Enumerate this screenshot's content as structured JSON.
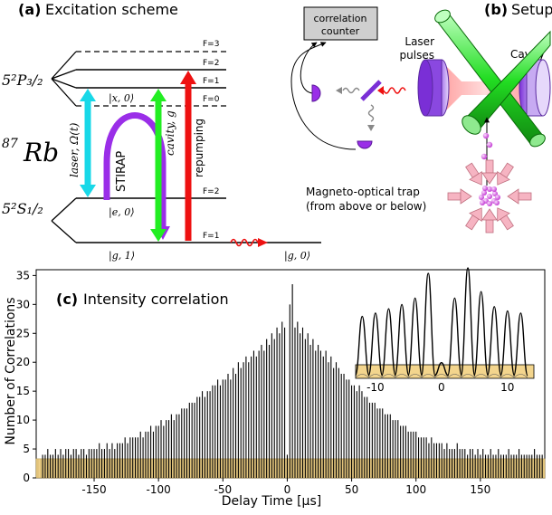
{
  "panel_a": {
    "title_letter": "(a)",
    "title_text": "Excitation scheme",
    "species": "87",
    "species_symbol": "Rb",
    "state_p": "5²P₃/₂",
    "state_s": "5²S₁/₂",
    "levels_p": [
      "F=3",
      "F=2",
      "F=1",
      "F=0"
    ],
    "levels_s": [
      "F=2",
      "F=1"
    ],
    "ket_x0": "|x, 0⟩",
    "ket_e0": "|e, 0⟩",
    "ket_g1": "|g, 1⟩",
    "ket_g0": "|g, 0⟩",
    "laser_label": "laser, Ω(t)",
    "stirap_label": "STIRAP",
    "cavity_label": "cavity, g",
    "repump_label": "repumping",
    "colors": {
      "laser": "#18d8e8",
      "stirap": "#9a2ee8",
      "cavity": "#22ee22",
      "repump": "#ee1111",
      "photon": "#ee1111"
    }
  },
  "panel_b": {
    "title_letter": "(b)",
    "title_text": "Setup",
    "counter_label": [
      "correlation",
      "counter"
    ],
    "laser_label": [
      "Laser",
      "pulses"
    ],
    "cavity_label": "Cavity",
    "mot_label": [
      "Magneto-optical trap",
      "(from above or below)"
    ],
    "icons": [
      "detector-icon",
      "beam-splitter-icon",
      "photon-wave-icon",
      "mirror-icon",
      "atom-cloud-icon"
    ]
  },
  "panel_c": {
    "title_letter": "(c)",
    "title_text": "Intensity correlation"
  },
  "chart_data": {
    "type": "bar",
    "title": "Intensity correlation",
    "xlabel": "Delay Time [μs]",
    "ylabel": "Number of Correlations",
    "xlim": [
      -195,
      200
    ],
    "ylim": [
      0,
      36
    ],
    "xticks": [
      -150,
      -100,
      -50,
      0,
      50,
      100,
      150
    ],
    "xtick_labels": [
      "-150",
      "-100",
      "-50",
      "0",
      "50",
      "100",
      "150"
    ],
    "yticks": [
      0,
      5,
      10,
      15,
      20,
      25,
      30,
      35
    ],
    "ytick_labels": [
      "0",
      "5",
      "10",
      "15",
      "20",
      "25",
      "30",
      "35"
    ],
    "peak_period": 2,
    "peaks": [
      [
        -190,
        4
      ],
      [
        -188,
        4
      ],
      [
        -186,
        5
      ],
      [
        -184,
        4
      ],
      [
        -182,
        4
      ],
      [
        -180,
        5
      ],
      [
        -178,
        4
      ],
      [
        -176,
        5
      ],
      [
        -174,
        4
      ],
      [
        -172,
        5
      ],
      [
        -170,
        5
      ],
      [
        -168,
        4
      ],
      [
        -166,
        5
      ],
      [
        -164,
        5
      ],
      [
        -162,
        4
      ],
      [
        -160,
        5
      ],
      [
        -158,
        5
      ],
      [
        -156,
        4
      ],
      [
        -154,
        5
      ],
      [
        -152,
        5
      ],
      [
        -150,
        5
      ],
      [
        -148,
        5
      ],
      [
        -146,
        6
      ],
      [
        -144,
        5
      ],
      [
        -142,
        5
      ],
      [
        -140,
        6
      ],
      [
        -138,
        5
      ],
      [
        -136,
        6
      ],
      [
        -134,
        5
      ],
      [
        -132,
        6
      ],
      [
        -130,
        6
      ],
      [
        -128,
        6
      ],
      [
        -126,
        7
      ],
      [
        -124,
        6
      ],
      [
        -122,
        7
      ],
      [
        -120,
        7
      ],
      [
        -118,
        7
      ],
      [
        -116,
        7
      ],
      [
        -114,
        8
      ],
      [
        -112,
        7
      ],
      [
        -110,
        8
      ],
      [
        -108,
        8
      ],
      [
        -106,
        9
      ],
      [
        -104,
        8
      ],
      [
        -102,
        9
      ],
      [
        -100,
        9
      ],
      [
        -98,
        10
      ],
      [
        -96,
        9
      ],
      [
        -94,
        10
      ],
      [
        -92,
        10
      ],
      [
        -90,
        11
      ],
      [
        -88,
        10
      ],
      [
        -86,
        11
      ],
      [
        -84,
        11
      ],
      [
        -82,
        12
      ],
      [
        -80,
        12
      ],
      [
        -78,
        12
      ],
      [
        -76,
        13
      ],
      [
        -74,
        13
      ],
      [
        -72,
        13
      ],
      [
        -70,
        14
      ],
      [
        -68,
        14
      ],
      [
        -66,
        15
      ],
      [
        -64,
        14
      ],
      [
        -62,
        15
      ],
      [
        -60,
        15
      ],
      [
        -58,
        16
      ],
      [
        -56,
        16
      ],
      [
        -54,
        17
      ],
      [
        -52,
        16
      ],
      [
        -50,
        17
      ],
      [
        -48,
        17
      ],
      [
        -46,
        18
      ],
      [
        -44,
        17
      ],
      [
        -42,
        19
      ],
      [
        -40,
        18
      ],
      [
        -38,
        20
      ],
      [
        -36,
        19
      ],
      [
        -34,
        20
      ],
      [
        -32,
        21
      ],
      [
        -30,
        20
      ],
      [
        -28,
        21
      ],
      [
        -26,
        22
      ],
      [
        -24,
        21
      ],
      [
        -22,
        22
      ],
      [
        -20,
        23
      ],
      [
        -18,
        22
      ],
      [
        -16,
        24
      ],
      [
        -14,
        23
      ],
      [
        -12,
        25
      ],
      [
        -10,
        24
      ],
      [
        -8,
        26
      ],
      [
        -6,
        25
      ],
      [
        -4,
        27
      ],
      [
        -2,
        26
      ],
      [
        0,
        4
      ],
      [
        2,
        30
      ],
      [
        4,
        33.5
      ],
      [
        6,
        26
      ],
      [
        8,
        27
      ],
      [
        10,
        25
      ],
      [
        12,
        26
      ],
      [
        14,
        24
      ],
      [
        16,
        25
      ],
      [
        18,
        23
      ],
      [
        20,
        24
      ],
      [
        22,
        22
      ],
      [
        24,
        23
      ],
      [
        26,
        22
      ],
      [
        28,
        21
      ],
      [
        30,
        22
      ],
      [
        32,
        20
      ],
      [
        34,
        21
      ],
      [
        36,
        19
      ],
      [
        38,
        20
      ],
      [
        40,
        19
      ],
      [
        42,
        18
      ],
      [
        44,
        18
      ],
      [
        46,
        17
      ],
      [
        48,
        17
      ],
      [
        50,
        16
      ],
      [
        52,
        16
      ],
      [
        54,
        15
      ],
      [
        56,
        16
      ],
      [
        58,
        15
      ],
      [
        60,
        14
      ],
      [
        62,
        14
      ],
      [
        64,
        13
      ],
      [
        66,
        13
      ],
      [
        68,
        13
      ],
      [
        70,
        12
      ],
      [
        72,
        12
      ],
      [
        74,
        12
      ],
      [
        76,
        11
      ],
      [
        78,
        11
      ],
      [
        80,
        11
      ],
      [
        82,
        10
      ],
      [
        84,
        10
      ],
      [
        86,
        10
      ],
      [
        88,
        9
      ],
      [
        90,
        9
      ],
      [
        92,
        9
      ],
      [
        94,
        8
      ],
      [
        96,
        8
      ],
      [
        98,
        8
      ],
      [
        100,
        8
      ],
      [
        102,
        7
      ],
      [
        104,
        7
      ],
      [
        106,
        7
      ],
      [
        108,
        7
      ],
      [
        110,
        6
      ],
      [
        112,
        7
      ],
      [
        114,
        6
      ],
      [
        116,
        6
      ],
      [
        118,
        6
      ],
      [
        120,
        6
      ],
      [
        122,
        5
      ],
      [
        124,
        6
      ],
      [
        126,
        5
      ],
      [
        128,
        5
      ],
      [
        130,
        5
      ],
      [
        132,
        6
      ],
      [
        134,
        5
      ],
      [
        136,
        5
      ],
      [
        138,
        5
      ],
      [
        140,
        4
      ],
      [
        142,
        5
      ],
      [
        144,
        5
      ],
      [
        146,
        4
      ],
      [
        148,
        5
      ],
      [
        150,
        4
      ],
      [
        152,
        5
      ],
      [
        154,
        4
      ],
      [
        156,
        4
      ],
      [
        158,
        5
      ],
      [
        160,
        4
      ],
      [
        162,
        4
      ],
      [
        164,
        5
      ],
      [
        166,
        4
      ],
      [
        168,
        4
      ],
      [
        170,
        4
      ],
      [
        172,
        5
      ],
      [
        174,
        4
      ],
      [
        176,
        4
      ],
      [
        178,
        4
      ],
      [
        180,
        5
      ],
      [
        182,
        4
      ],
      [
        184,
        4
      ],
      [
        186,
        4
      ],
      [
        188,
        4
      ],
      [
        190,
        4
      ],
      [
        192,
        5
      ],
      [
        194,
        4
      ],
      [
        196,
        4
      ],
      [
        198,
        4
      ]
    ],
    "background_band": [
      0,
      3.3
    ],
    "band_color": "#f3d58d",
    "inset": {
      "type": "line",
      "xlim": [
        -13,
        14
      ],
      "xticks": [
        -10,
        0,
        10
      ],
      "xtick_labels": [
        "-10",
        "0",
        "10"
      ],
      "band_color": "#f3d58d",
      "peaks": [
        [
          -12,
          0.55
        ],
        [
          -10,
          0.58
        ],
        [
          -8,
          0.62
        ],
        [
          -6,
          0.66
        ],
        [
          -4,
          0.72
        ],
        [
          -2,
          0.95
        ],
        [
          0,
          0.12
        ],
        [
          2,
          0.72
        ],
        [
          4,
          1.0
        ],
        [
          6,
          0.78
        ],
        [
          8,
          0.64
        ],
        [
          10,
          0.6
        ],
        [
          12,
          0.58
        ]
      ]
    }
  }
}
